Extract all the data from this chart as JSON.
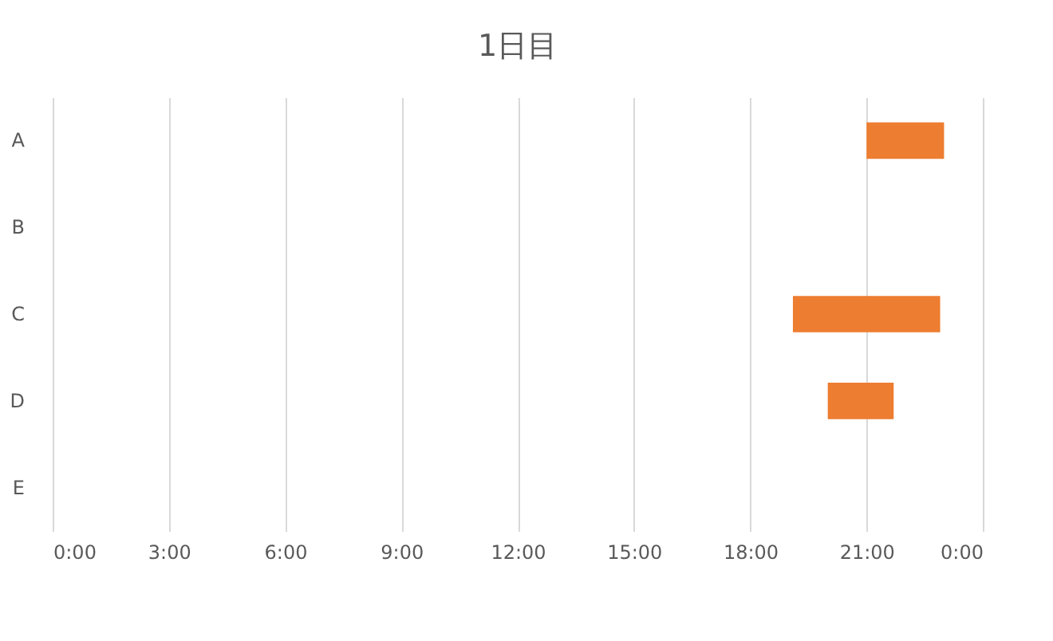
{
  "chart_data": {
    "type": "bar",
    "orientation": "horizontal",
    "title": "1日目",
    "categories": [
      "A",
      "B",
      "C",
      "D",
      "E"
    ],
    "base": [
      21,
      null,
      19.1,
      20,
      null
    ],
    "values": [
      2,
      null,
      3.8,
      1.7,
      null
    ],
    "color": "#ed7d31",
    "xlim": [
      0,
      24
    ],
    "xticks": [
      {
        "value": 0,
        "label": "0:00"
      },
      {
        "value": 3,
        "label": "3:00"
      },
      {
        "value": 6,
        "label": "6:00"
      },
      {
        "value": 9,
        "label": "9:00"
      },
      {
        "value": 12,
        "label": "12:00"
      },
      {
        "value": 15,
        "label": "15:00"
      },
      {
        "value": 18,
        "label": "18:00"
      },
      {
        "value": 21,
        "label": "21:00"
      },
      {
        "value": 24,
        "label": "0:00"
      }
    ],
    "grid": "x"
  }
}
